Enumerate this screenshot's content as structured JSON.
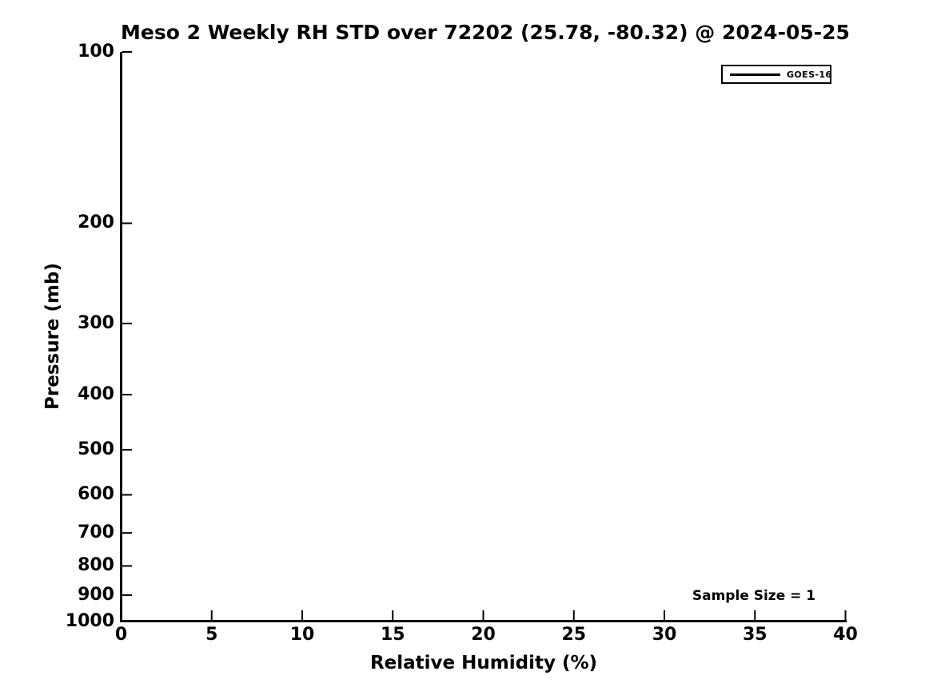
{
  "figure": {
    "background": "#ffffff",
    "text_color": "#000000"
  },
  "chart_data": {
    "type": "line",
    "title": "Meso 2 Weekly RH STD over 72202 (25.78, -80.32) @ 2024-05-25",
    "xlabel": "Relative Humidity (%)",
    "ylabel": "Pressure (mb)",
    "x_axis": {
      "min": 0,
      "max": 40,
      "scale": "linear",
      "ticks": [
        0,
        5,
        10,
        15,
        20,
        25,
        30,
        35,
        40
      ]
    },
    "y_axis": {
      "min": 100,
      "max": 1000,
      "scale": "log",
      "inverted": true,
      "ticks": [
        100,
        200,
        300,
        400,
        500,
        600,
        700,
        800,
        900,
        1000
      ]
    },
    "grid": false,
    "axis_color": "#000000",
    "legend": {
      "position": "upper-right",
      "entries": [
        {
          "label": "GOES-16",
          "color": "#000000"
        }
      ]
    },
    "annotation": {
      "text": "Sample Size = 1",
      "x": 35,
      "y": 900
    },
    "series": [
      {
        "name": "GOES-16",
        "color": "#000000",
        "points": [
          {
            "rh": 0,
            "pressure": 100
          },
          {
            "rh": 0,
            "pressure": 1000
          }
        ]
      }
    ]
  }
}
